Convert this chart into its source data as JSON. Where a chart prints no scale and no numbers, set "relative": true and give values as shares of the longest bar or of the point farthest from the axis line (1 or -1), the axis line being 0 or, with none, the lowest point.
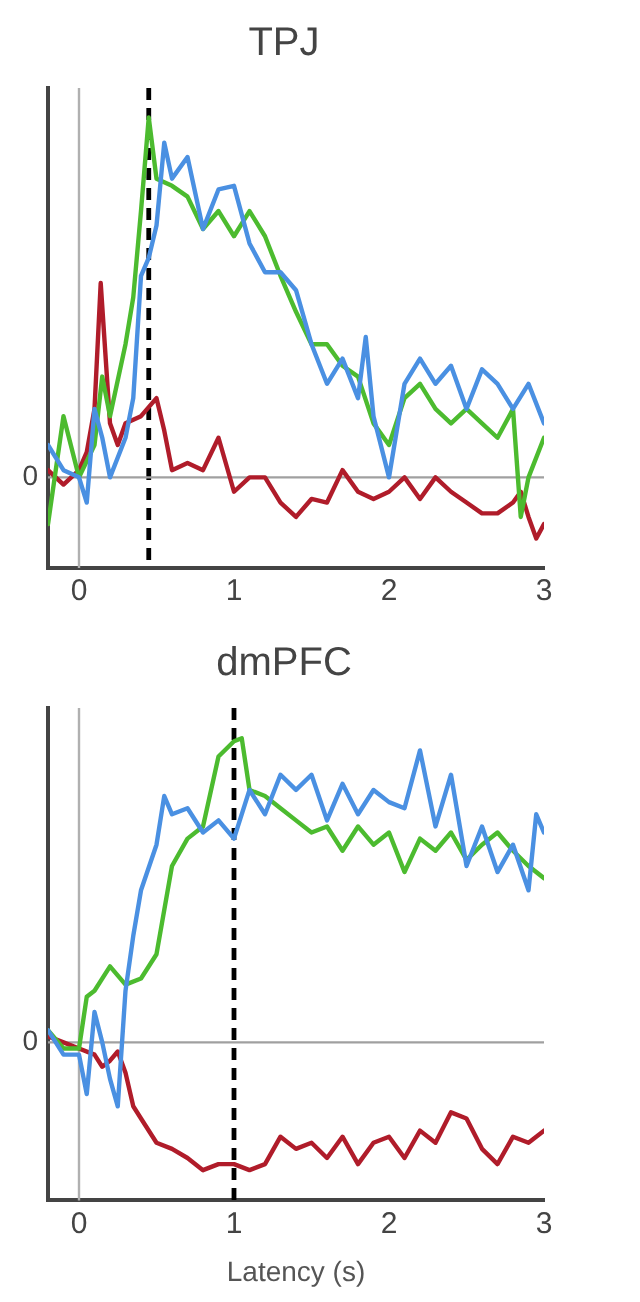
{
  "chart_data": [
    {
      "type": "line",
      "title": "TPJ",
      "relative": true,
      "xlim": [
        -0.2,
        3
      ],
      "xticks": [
        0,
        1,
        2,
        3
      ],
      "grid": false,
      "legend": false,
      "marker": "none",
      "line_style": "solid",
      "ref_lines": [
        {
          "axis": "x",
          "value": 0,
          "color": "#b0b0b0",
          "line_style": "solid"
        },
        {
          "axis": "x",
          "value": 0.45,
          "color": "#000000",
          "line_style": "dashed"
        },
        {
          "axis": "y",
          "value": 0,
          "label": "0",
          "color": "#a0a0a0",
          "line_style": "solid"
        }
      ],
      "series": [
        {
          "color": "#4a90e2",
          "x": [
            -0.2,
            -0.1,
            0,
            0.05,
            0.1,
            0.15,
            0.2,
            0.3,
            0.35,
            0.4,
            0.45,
            0.5,
            0.55,
            0.6,
            0.7,
            0.8,
            0.9,
            1.0,
            1.1,
            1.2,
            1.3,
            1.4,
            1.5,
            1.6,
            1.7,
            1.8,
            1.85,
            1.9,
            2.0,
            2.1,
            2.2,
            2.3,
            2.4,
            2.5,
            2.6,
            2.7,
            2.8,
            2.9,
            3.0
          ],
          "values": [
            0.09,
            0.02,
            0,
            -0.07,
            0.19,
            0.11,
            0,
            0.11,
            0.22,
            0.56,
            0.61,
            0.7,
            0.93,
            0.83,
            0.89,
            0.69,
            0.8,
            0.81,
            0.65,
            0.57,
            0.57,
            0.52,
            0.37,
            0.26,
            0.33,
            0.22,
            0.39,
            0.17,
            0,
            0.26,
            0.33,
            0.26,
            0.31,
            0.19,
            0.3,
            0.26,
            0.19,
            0.26,
            0.15
          ]
        },
        {
          "color": "#4cbb2f",
          "x": [
            -0.2,
            -0.1,
            0,
            0.1,
            0.15,
            0.2,
            0.3,
            0.35,
            0.4,
            0.45,
            0.5,
            0.6,
            0.7,
            0.8,
            0.9,
            1.0,
            1.1,
            1.2,
            1.3,
            1.4,
            1.5,
            1.6,
            1.7,
            1.8,
            1.9,
            2.0,
            2.1,
            2.2,
            2.3,
            2.4,
            2.5,
            2.6,
            2.7,
            2.8,
            2.85,
            2.9,
            3.0
          ],
          "values": [
            -0.13,
            0.17,
            0,
            0.09,
            0.28,
            0.17,
            0.37,
            0.5,
            0.74,
            1,
            0.83,
            0.81,
            0.78,
            0.69,
            0.74,
            0.67,
            0.74,
            0.67,
            0.56,
            0.46,
            0.37,
            0.37,
            0.31,
            0.28,
            0.15,
            0.09,
            0.22,
            0.26,
            0.19,
            0.15,
            0.19,
            0.15,
            0.11,
            0.19,
            -0.11,
            0,
            0.11
          ]
        },
        {
          "color": "#b01c2a",
          "x": [
            -0.2,
            -0.1,
            0,
            0.05,
            0.1,
            0.14,
            0.2,
            0.25,
            0.3,
            0.4,
            0.5,
            0.55,
            0.6,
            0.7,
            0.8,
            0.9,
            1.0,
            1.1,
            1.2,
            1.3,
            1.4,
            1.5,
            1.6,
            1.7,
            1.8,
            1.9,
            2.0,
            2.1,
            2.2,
            2.3,
            2.4,
            2.5,
            2.6,
            2.7,
            2.8,
            2.85,
            2.9,
            2.95,
            3.0
          ],
          "values": [
            0.02,
            -0.02,
            0.02,
            0.07,
            0.19,
            0.54,
            0.15,
            0.09,
            0.15,
            0.17,
            0.22,
            0.13,
            0.02,
            0.04,
            0.02,
            0.11,
            -0.04,
            0,
            0,
            -0.07,
            -0.11,
            -0.06,
            -0.07,
            0.02,
            -0.04,
            -0.06,
            -0.04,
            0,
            -0.06,
            0,
            -0.04,
            -0.07,
            -0.1,
            -0.1,
            -0.07,
            -0.04,
            -0.11,
            -0.17,
            -0.13
          ]
        }
      ]
    },
    {
      "type": "line",
      "title": "dmPFC",
      "xlabel": "Latency (s)",
      "relative": true,
      "xlim": [
        -0.2,
        3
      ],
      "xticks": [
        0,
        1,
        2,
        3
      ],
      "grid": false,
      "legend": false,
      "marker": "none",
      "line_style": "solid",
      "ref_lines": [
        {
          "axis": "x",
          "value": 0,
          "color": "#b0b0b0",
          "line_style": "solid"
        },
        {
          "axis": "x",
          "value": 1,
          "color": "#000000",
          "line_style": "dashed"
        },
        {
          "axis": "y",
          "value": 0,
          "label": "0",
          "color": "#a0a0a0",
          "line_style": "solid"
        }
      ],
      "series": [
        {
          "color": "#4a90e2",
          "x": [
            -0.2,
            -0.1,
            0,
            0.05,
            0.1,
            0.15,
            0.2,
            0.25,
            0.3,
            0.35,
            0.4,
            0.5,
            0.55,
            0.6,
            0.7,
            0.8,
            0.9,
            1.0,
            1.1,
            1.2,
            1.3,
            1.4,
            1.5,
            1.6,
            1.7,
            1.8,
            1.9,
            2.0,
            2.1,
            2.2,
            2.3,
            2.4,
            2.5,
            2.6,
            2.7,
            2.8,
            2.9,
            2.95,
            3.0
          ],
          "values": [
            0.04,
            -0.04,
            -0.04,
            -0.17,
            0.1,
            0,
            -0.12,
            -0.21,
            0.17,
            0.35,
            0.5,
            0.65,
            0.81,
            0.75,
            0.77,
            0.69,
            0.73,
            0.67,
            0.83,
            0.75,
            0.88,
            0.83,
            0.88,
            0.73,
            0.85,
            0.75,
            0.83,
            0.79,
            0.77,
            0.96,
            0.71,
            0.88,
            0.58,
            0.71,
            0.56,
            0.65,
            0.5,
            0.75,
            0.69
          ]
        },
        {
          "color": "#4cbb2f",
          "x": [
            -0.2,
            -0.1,
            0,
            0.05,
            0.1,
            0.2,
            0.3,
            0.4,
            0.5,
            0.6,
            0.7,
            0.8,
            0.9,
            1.0,
            1.05,
            1.1,
            1.2,
            1.3,
            1.4,
            1.5,
            1.6,
            1.7,
            1.8,
            1.9,
            2.0,
            2.1,
            2.2,
            2.3,
            2.4,
            2.5,
            2.6,
            2.7,
            2.8,
            2.9,
            3.0
          ],
          "values": [
            0.04,
            -0.02,
            -0.02,
            0.15,
            0.17,
            0.25,
            0.19,
            0.21,
            0.29,
            0.58,
            0.67,
            0.71,
            0.94,
            0.99,
            1,
            0.83,
            0.81,
            0.77,
            0.73,
            0.69,
            0.71,
            0.63,
            0.71,
            0.65,
            0.69,
            0.56,
            0.67,
            0.63,
            0.69,
            0.6,
            0.65,
            0.69,
            0.63,
            0.58,
            0.54
          ]
        },
        {
          "color": "#b01c2a",
          "x": [
            -0.2,
            -0.1,
            0,
            0.1,
            0.15,
            0.2,
            0.25,
            0.3,
            0.35,
            0.4,
            0.5,
            0.6,
            0.7,
            0.8,
            0.9,
            1.0,
            1.1,
            1.2,
            1.3,
            1.4,
            1.5,
            1.6,
            1.7,
            1.8,
            1.9,
            2.0,
            2.1,
            2.2,
            2.3,
            2.4,
            2.5,
            2.6,
            2.7,
            2.8,
            2.9,
            3.0
          ],
          "values": [
            0.02,
            0,
            -0.02,
            -0.04,
            -0.08,
            -0.06,
            -0.03,
            -0.1,
            -0.21,
            -0.25,
            -0.33,
            -0.35,
            -0.38,
            -0.42,
            -0.4,
            -0.4,
            -0.42,
            -0.4,
            -0.31,
            -0.35,
            -0.33,
            -0.38,
            -0.31,
            -0.4,
            -0.33,
            -0.31,
            -0.38,
            -0.29,
            -0.33,
            -0.23,
            -0.25,
            -0.35,
            -0.4,
            -0.31,
            -0.33,
            -0.29
          ]
        }
      ]
    }
  ]
}
